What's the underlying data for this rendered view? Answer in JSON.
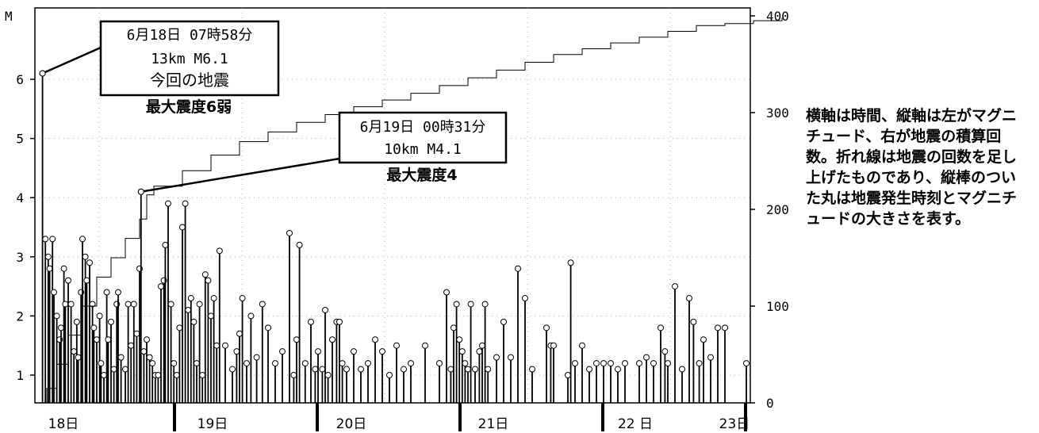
{
  "chart_data": {
    "type": "line",
    "left_axis_label": "M",
    "left_ticks": [
      "1",
      "2",
      "3",
      "4",
      "5",
      "6"
    ],
    "right_ticks": [
      "0",
      "100",
      "200",
      "300",
      "400"
    ],
    "days": [
      "18日",
      "19日",
      "20日",
      "21日",
      "22 日",
      "23日"
    ],
    "x_range_days": [
      0,
      5.3
    ],
    "y_range_magnitude": [
      0.5,
      6.8
    ],
    "y2_range_count": [
      0,
      400
    ],
    "annotations": [
      {
        "lines": [
          "6月18日 07時58分",
          "13km  M6.1",
          "今回の地震"
        ],
        "sub": "最大震度6弱",
        "event_t": 0.02,
        "event_m": 6.1
      },
      {
        "lines": [
          "6月19日 00時31分",
          "10km  M4.1"
        ],
        "sub": "最大震度4",
        "event_t": 0.71,
        "event_m": 4.1
      }
    ],
    "cumulative": [
      [
        0.0,
        0
      ],
      [
        0.05,
        15
      ],
      [
        0.12,
        40
      ],
      [
        0.2,
        70
      ],
      [
        0.3,
        100
      ],
      [
        0.4,
        130
      ],
      [
        0.5,
        150
      ],
      [
        0.6,
        170
      ],
      [
        0.7,
        190
      ],
      [
        0.75,
        215
      ],
      [
        0.8,
        224
      ],
      [
        1.0,
        240
      ],
      [
        1.2,
        256
      ],
      [
        1.4,
        270
      ],
      [
        1.6,
        280
      ],
      [
        1.8,
        290
      ],
      [
        2.0,
        298
      ],
      [
        2.2,
        306
      ],
      [
        2.4,
        313
      ],
      [
        2.6,
        320
      ],
      [
        2.8,
        328
      ],
      [
        3.0,
        336
      ],
      [
        3.2,
        344
      ],
      [
        3.4,
        352
      ],
      [
        3.6,
        360
      ],
      [
        3.8,
        366
      ],
      [
        4.0,
        372
      ],
      [
        4.2,
        378
      ],
      [
        4.4,
        384
      ],
      [
        4.6,
        390
      ],
      [
        4.8,
        392
      ],
      [
        5.0,
        395
      ],
      [
        5.2,
        398
      ]
    ],
    "quakes": [
      [
        0.02,
        6.1
      ],
      [
        0.04,
        3.3
      ],
      [
        0.06,
        3.0
      ],
      [
        0.07,
        2.8
      ],
      [
        0.09,
        3.3
      ],
      [
        0.1,
        2.4
      ],
      [
        0.12,
        2.0
      ],
      [
        0.14,
        1.6
      ],
      [
        0.15,
        1.8
      ],
      [
        0.17,
        2.8
      ],
      [
        0.18,
        2.2
      ],
      [
        0.2,
        2.6
      ],
      [
        0.22,
        2.2
      ],
      [
        0.24,
        1.4
      ],
      [
        0.26,
        1.9
      ],
      [
        0.27,
        1.3
      ],
      [
        0.29,
        2.4
      ],
      [
        0.3,
        3.3
      ],
      [
        0.32,
        3.0
      ],
      [
        0.33,
        2.6
      ],
      [
        0.35,
        2.9
      ],
      [
        0.37,
        2.2
      ],
      [
        0.38,
        1.8
      ],
      [
        0.4,
        1.6
      ],
      [
        0.42,
        2.0
      ],
      [
        0.43,
        1.2
      ],
      [
        0.45,
        1.0
      ],
      [
        0.47,
        2.4
      ],
      [
        0.48,
        1.6
      ],
      [
        0.5,
        1.9
      ],
      [
        0.52,
        1.1
      ],
      [
        0.54,
        2.2
      ],
      [
        0.55,
        2.4
      ],
      [
        0.57,
        1.3
      ],
      [
        0.6,
        1.1
      ],
      [
        0.62,
        2.2
      ],
      [
        0.64,
        1.5
      ],
      [
        0.66,
        2.2
      ],
      [
        0.68,
        1.7
      ],
      [
        0.7,
        2.8
      ],
      [
        0.71,
        4.1
      ],
      [
        0.73,
        1.4
      ],
      [
        0.75,
        1.6
      ],
      [
        0.77,
        1.3
      ],
      [
        0.79,
        1.2
      ],
      [
        0.81,
        1.0
      ],
      [
        0.83,
        1.0
      ],
      [
        0.85,
        2.5
      ],
      [
        0.87,
        2.6
      ],
      [
        0.88,
        3.2
      ],
      [
        0.9,
        3.9
      ],
      [
        0.92,
        2.2
      ],
      [
        0.94,
        1.2
      ],
      [
        0.96,
        1.0
      ],
      [
        0.98,
        1.8
      ],
      [
        1.0,
        3.5
      ],
      [
        1.02,
        3.9
      ],
      [
        1.04,
        2.1
      ],
      [
        1.06,
        2.3
      ],
      [
        1.08,
        1.9
      ],
      [
        1.1,
        1.2
      ],
      [
        1.12,
        2.2
      ],
      [
        1.14,
        1.0
      ],
      [
        1.16,
        2.7
      ],
      [
        1.18,
        2.6
      ],
      [
        1.2,
        2.0
      ],
      [
        1.22,
        2.3
      ],
      [
        1.24,
        1.5
      ],
      [
        1.26,
        3.1
      ],
      [
        1.3,
        1.5
      ],
      [
        1.35,
        1.1
      ],
      [
        1.38,
        1.4
      ],
      [
        1.4,
        1.7
      ],
      [
        1.42,
        2.3
      ],
      [
        1.45,
        1.2
      ],
      [
        1.48,
        2.0
      ],
      [
        1.52,
        1.3
      ],
      [
        1.56,
        2.2
      ],
      [
        1.6,
        1.8
      ],
      [
        1.65,
        1.2
      ],
      [
        1.7,
        1.4
      ],
      [
        1.75,
        3.4
      ],
      [
        1.78,
        1.0
      ],
      [
        1.8,
        1.6
      ],
      [
        1.82,
        3.2
      ],
      [
        1.86,
        1.2
      ],
      [
        1.9,
        1.9
      ],
      [
        1.93,
        1.1
      ],
      [
        1.95,
        1.4
      ],
      [
        1.98,
        1.1
      ],
      [
        2.0,
        2.1
      ],
      [
        2.02,
        1.0
      ],
      [
        2.05,
        1.6
      ],
      [
        2.08,
        1.9
      ],
      [
        2.1,
        1.9
      ],
      [
        2.12,
        1.2
      ],
      [
        2.15,
        1.1
      ],
      [
        2.2,
        1.4
      ],
      [
        2.25,
        1.1
      ],
      [
        2.3,
        1.2
      ],
      [
        2.35,
        1.6
      ],
      [
        2.4,
        1.4
      ],
      [
        2.45,
        1.0
      ],
      [
        2.5,
        1.5
      ],
      [
        2.55,
        1.1
      ],
      [
        2.6,
        1.2
      ],
      [
        2.7,
        1.5
      ],
      [
        2.8,
        1.2
      ],
      [
        2.85,
        2.4
      ],
      [
        2.88,
        1.1
      ],
      [
        2.9,
        1.8
      ],
      [
        2.92,
        2.2
      ],
      [
        2.94,
        1.6
      ],
      [
        2.96,
        1.4
      ],
      [
        2.98,
        1.2
      ],
      [
        3.0,
        1.1
      ],
      [
        3.02,
        2.2
      ],
      [
        3.05,
        1.1
      ],
      [
        3.08,
        1.4
      ],
      [
        3.1,
        1.5
      ],
      [
        3.12,
        2.2
      ],
      [
        3.14,
        1.1
      ],
      [
        3.2,
        1.3
      ],
      [
        3.25,
        1.9
      ],
      [
        3.3,
        1.3
      ],
      [
        3.35,
        2.8
      ],
      [
        3.4,
        2.3
      ],
      [
        3.45,
        1.1
      ],
      [
        3.55,
        1.8
      ],
      [
        3.58,
        1.5
      ],
      [
        3.6,
        1.5
      ],
      [
        3.7,
        1.0
      ],
      [
        3.72,
        2.9
      ],
      [
        3.75,
        1.2
      ],
      [
        3.8,
        1.5
      ],
      [
        3.85,
        1.1
      ],
      [
        3.9,
        1.2
      ],
      [
        3.95,
        1.2
      ],
      [
        4.0,
        1.2
      ],
      [
        4.05,
        1.1
      ],
      [
        4.1,
        1.2
      ],
      [
        4.2,
        1.2
      ],
      [
        4.25,
        1.3
      ],
      [
        4.3,
        1.2
      ],
      [
        4.35,
        1.8
      ],
      [
        4.38,
        1.4
      ],
      [
        4.4,
        1.2
      ],
      [
        4.45,
        2.5
      ],
      [
        4.5,
        1.1
      ],
      [
        4.55,
        2.3
      ],
      [
        4.58,
        1.9
      ],
      [
        4.62,
        1.2
      ],
      [
        4.65,
        1.6
      ],
      [
        4.7,
        1.3
      ],
      [
        4.75,
        1.8
      ],
      [
        4.8,
        1.8
      ],
      [
        4.95,
        1.2
      ]
    ]
  },
  "note": "横軸は時間、縦軸は左がマグニチュード、右が地震の積算回数。折れ線は地震の回数を足し上げたものであり、縦棒のついた丸は地震発生時刻とマグニチュードの大きさを表す。"
}
